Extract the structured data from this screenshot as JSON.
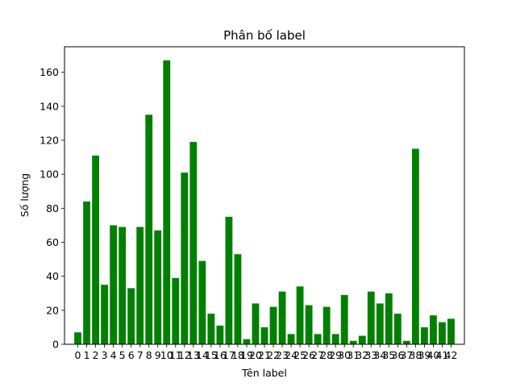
{
  "chart_data": {
    "type": "bar",
    "title": "Phân bố label",
    "xlabel": "Tên label",
    "ylabel": "Số lượng",
    "categories": [
      "0",
      "1",
      "2",
      "3",
      "4",
      "5",
      "6",
      "7",
      "8",
      "9",
      "10",
      "11",
      "12",
      "13",
      "14",
      "15",
      "16",
      "17",
      "18",
      "19",
      "20",
      "21",
      "22",
      "23",
      "24",
      "25",
      "26",
      "27",
      "28",
      "29",
      "30",
      "31",
      "32",
      "33",
      "34",
      "35",
      "36",
      "37",
      "38",
      "39",
      "40",
      "41",
      "42"
    ],
    "values": [
      7,
      84,
      111,
      35,
      70,
      69,
      33,
      69,
      135,
      67,
      167,
      39,
      101,
      119,
      49,
      18,
      11,
      75,
      53,
      3,
      24,
      10,
      22,
      31,
      6,
      34,
      23,
      6,
      22,
      6,
      29,
      2,
      5,
      31,
      24,
      30,
      18,
      2,
      115,
      10,
      17,
      13,
      15
    ],
    "ylim": [
      0,
      175
    ],
    "yticks": [
      0,
      20,
      40,
      60,
      80,
      100,
      120,
      140,
      160
    ],
    "grid": false,
    "legend": "none",
    "bar_color": "#008000"
  }
}
